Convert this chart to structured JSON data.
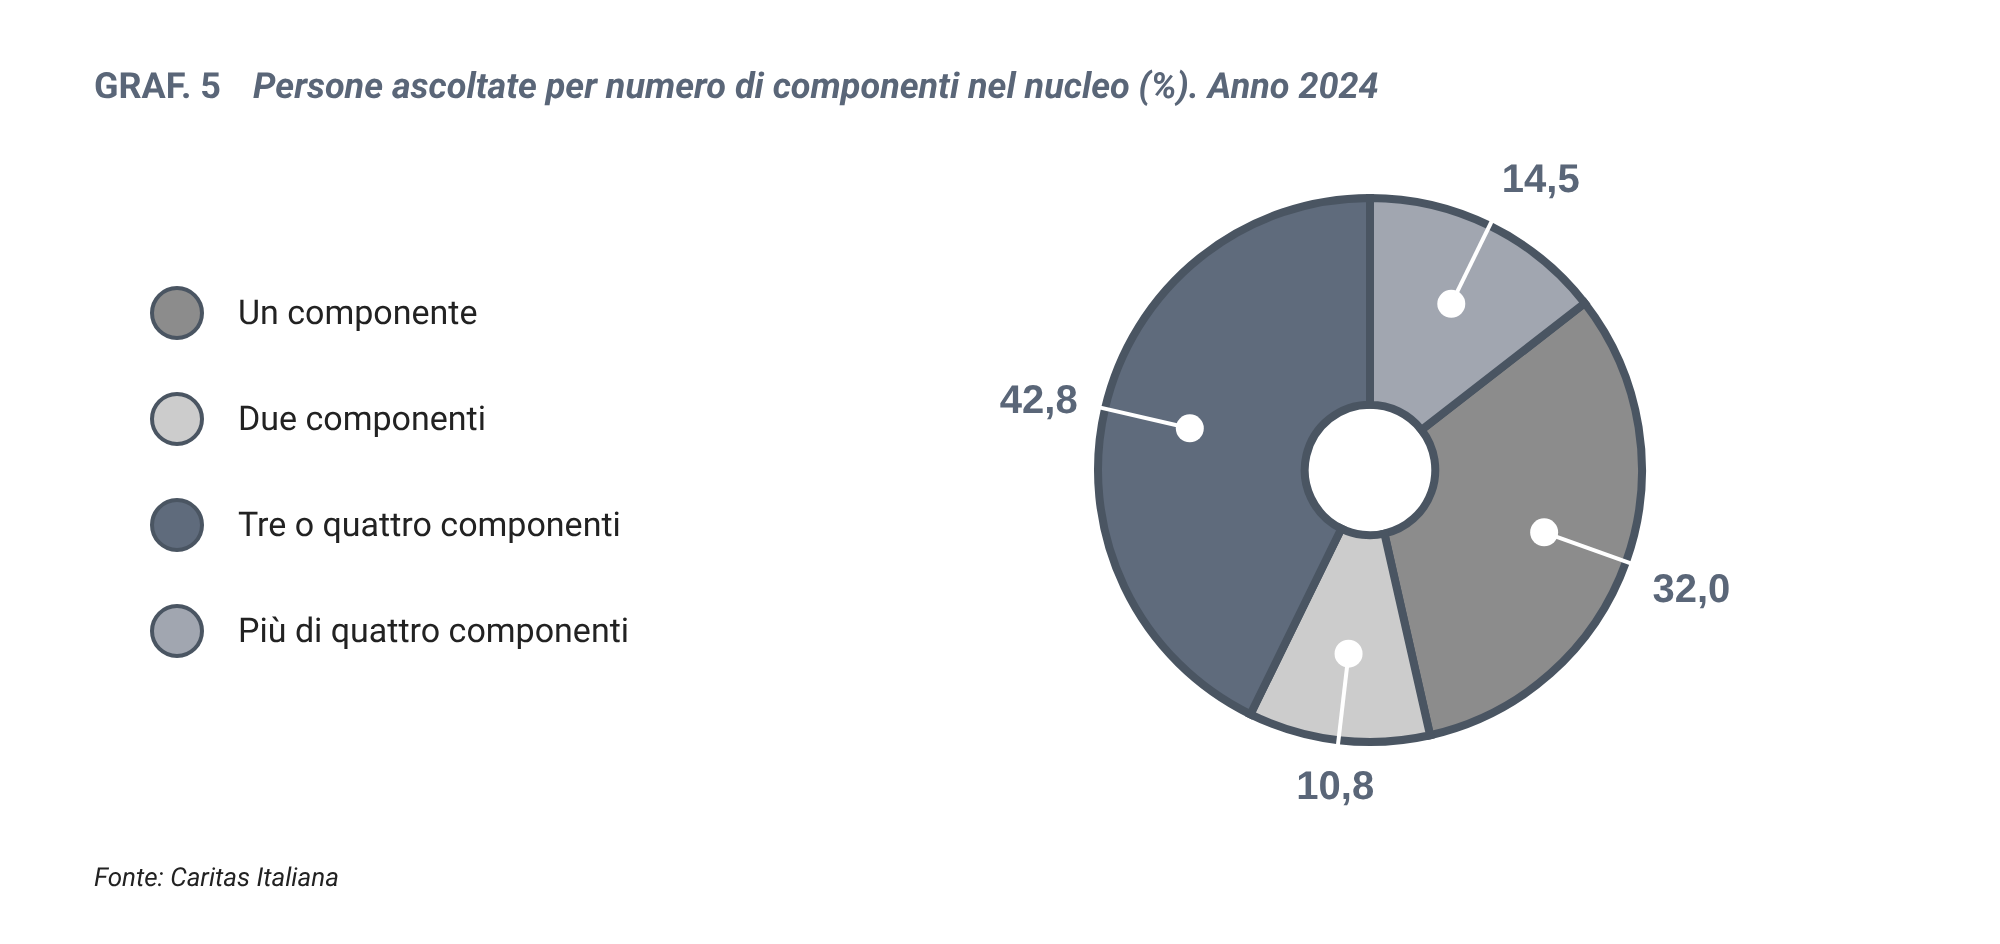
{
  "chart_data": {
    "type": "donut",
    "title": "GRAF. 5",
    "subtitle": "Persone ascoltate per numero di componenti nel nucleo (%). Anno 2024",
    "categories": [
      "Un componente",
      "Due componenti",
      "Tre o quattro componenti",
      "Più di quattro componenti"
    ],
    "values": [
      32.0,
      10.8,
      42.8,
      14.5
    ],
    "colors": [
      "#8c8c8c",
      "#cccccc",
      "#5f6b7c",
      "#a1a6b0"
    ],
    "value_labels": [
      "32,0",
      "10,8",
      "42,8",
      "14,5"
    ],
    "legend": "left",
    "annotations": [
      "Fonte: Caritas Italiana"
    ]
  }
}
